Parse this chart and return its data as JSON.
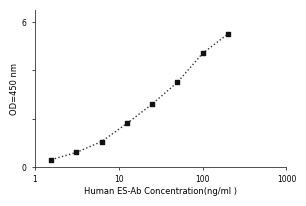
{
  "x_values": [
    1.563,
    3.125,
    6.25,
    12.5,
    25,
    50,
    100,
    200
  ],
  "y_values": [
    0.3,
    0.6,
    1.05,
    1.8,
    2.6,
    3.5,
    4.7,
    5.5
  ],
  "xscale": "log",
  "yscale": "linear",
  "xlim": [
    1,
    1000
  ],
  "ylim": [
    0,
    6.5
  ],
  "xlabel": "Human ES-Ab Concentration(ng/ml )",
  "ylabel": "OD=450 nm",
  "yticks": [
    0,
    2,
    4,
    6
  ],
  "ytick_labels": [
    "0",
    "",
    "",
    "6"
  ],
  "xticks": [
    1,
    10,
    100,
    1000
  ],
  "xtick_labels": [
    "1",
    "10",
    "100",
    "1000"
  ],
  "marker": "s",
  "marker_color": "#111111",
  "marker_size": 3.5,
  "line_style": ":",
  "line_color": "#333333",
  "line_width": 1.0,
  "background_color": "#ffffff",
  "xlabel_fontsize": 6.0,
  "ylabel_fontsize": 6.0,
  "tick_fontsize": 5.5,
  "figsize": [
    3.0,
    2.0
  ],
  "dpi": 100
}
